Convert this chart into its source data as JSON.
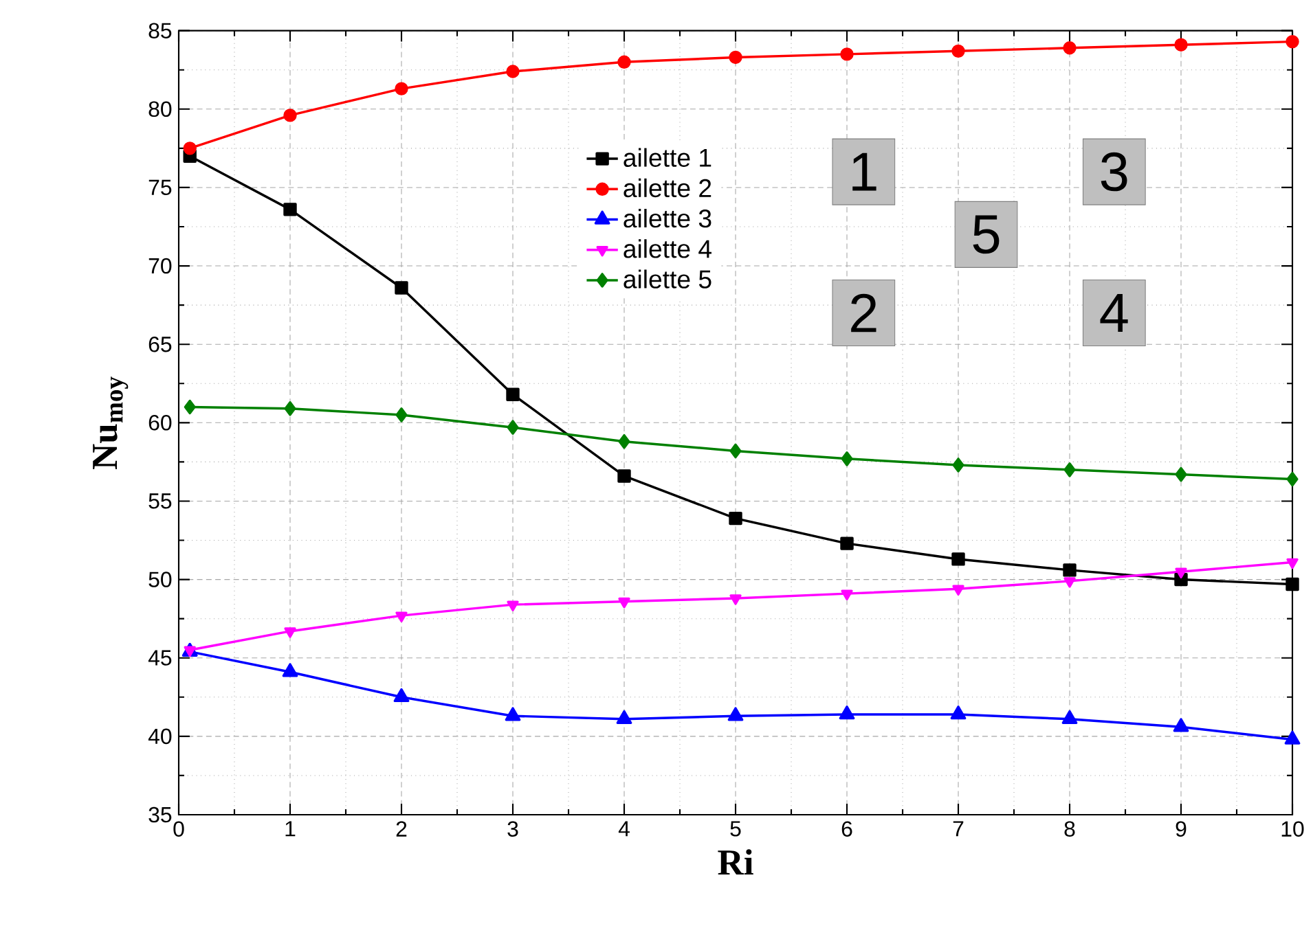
{
  "chart_data": {
    "type": "line",
    "xlabel": "Ri",
    "ylabel": "**Nu$_{moy}$**",
    "x": [
      0.1,
      1,
      2,
      3,
      4,
      5,
      6,
      7,
      8,
      9,
      10
    ],
    "xlim": [
      0,
      10
    ],
    "xticks": [
      0,
      1,
      2,
      3,
      4,
      5,
      6,
      7,
      8,
      9,
      10
    ],
    "ylim": [
      35,
      85
    ],
    "yticks": [
      35,
      40,
      45,
      50,
      55,
      60,
      65,
      70,
      75,
      80,
      85
    ],
    "grid": true,
    "legend": "top",
    "line_style": "solid",
    "series": [
      {
        "name": "ailette 1",
        "color": "#000000",
        "marker": "square",
        "values": [
          77.0,
          73.6,
          68.6,
          61.8,
          56.6,
          53.9,
          52.3,
          51.3,
          50.6,
          50.0,
          49.7
        ]
      },
      {
        "name": "ailette 2",
        "color": "#ff0000",
        "marker": "circle",
        "values": [
          77.5,
          79.6,
          81.3,
          82.4,
          83.0,
          83.3,
          83.5,
          83.7,
          83.9,
          84.1,
          84.3
        ]
      },
      {
        "name": "ailette 3",
        "color": "#0000ff",
        "marker": "triangle",
        "values": [
          45.4,
          44.1,
          42.5,
          41.3,
          41.1,
          41.3,
          41.4,
          41.4,
          41.1,
          40.6,
          39.8
        ]
      },
      {
        "name": "ailette 4",
        "color": "#ff00ff",
        "marker": "triangle-down",
        "values": [
          45.5,
          46.7,
          47.7,
          48.4,
          48.6,
          48.8,
          49.1,
          49.4,
          49.9,
          50.5,
          51.1
        ]
      },
      {
        "name": "ailette 5",
        "color": "#008000",
        "marker": "diamond",
        "values": [
          61.0,
          60.9,
          60.5,
          59.7,
          58.8,
          58.2,
          57.7,
          57.3,
          57.0,
          56.7,
          56.4
        ]
      }
    ],
    "annotations": [
      "1",
      "2",
      "5",
      "3",
      "4"
    ]
  }
}
